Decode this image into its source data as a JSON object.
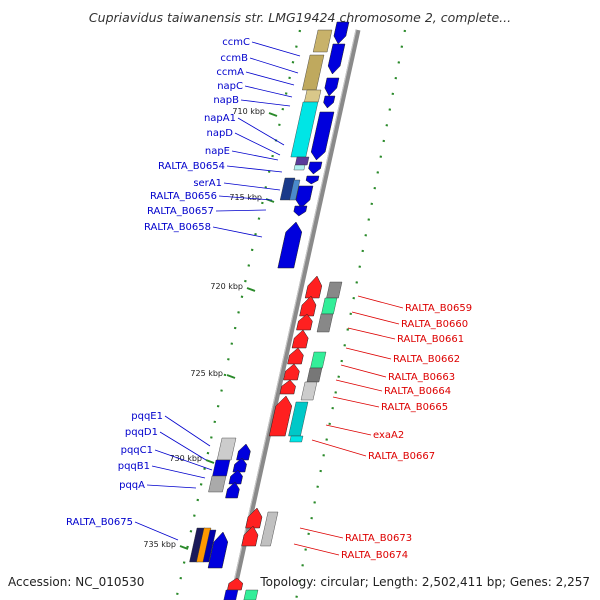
{
  "title": "Cupriavidus taiwanensis str. LMG19424 chromosome 2, complete...",
  "accession": "Accession: NC_010530",
  "topology": "Topology: circular; Length: 2,502,411 bp; Genes: 2,257",
  "colors": {
    "left_label": "#0000cc",
    "right_label": "#dd0000",
    "backbone": "#888888",
    "tick": "#2a8a2a"
  },
  "ticks": [
    {
      "label": "710 kbp"
    },
    {
      "label": "715 kbp"
    },
    {
      "label": "720 kbp"
    },
    {
      "label": "725 kbp"
    },
    {
      "label": "730 kbp"
    },
    {
      "label": "735 kbp"
    }
  ],
  "left_genes": [
    {
      "label": "ccmC"
    },
    {
      "label": "ccmB"
    },
    {
      "label": "ccmA"
    },
    {
      "label": "napC"
    },
    {
      "label": "napB"
    },
    {
      "label": "napA1"
    },
    {
      "label": "napD"
    },
    {
      "label": "napE"
    },
    {
      "label": "RALTA_B0654"
    },
    {
      "label": "serA1"
    },
    {
      "label": "RALTA_B0656"
    },
    {
      "label": "RALTA_B0657"
    },
    {
      "label": "RALTA_B0658"
    },
    {
      "label": "pqqE1"
    },
    {
      "label": "pqqD1"
    },
    {
      "label": "pqqC1"
    },
    {
      "label": "pqqB1"
    },
    {
      "label": "pqqA"
    },
    {
      "label": "RALTA_B0675"
    }
  ],
  "right_genes": [
    {
      "label": "RALTA_B0659"
    },
    {
      "label": "RALTA_B0660"
    },
    {
      "label": "RALTA_B0661"
    },
    {
      "label": "RALTA_B0662"
    },
    {
      "label": "RALTA_B0663"
    },
    {
      "label": "RALTA_B0664"
    },
    {
      "label": "RALTA_B0665"
    },
    {
      "label": "exaA2"
    },
    {
      "label": "RALTA_B0667"
    },
    {
      "label": "RALTA_B0673"
    },
    {
      "label": "RALTA_B0674"
    }
  ]
}
